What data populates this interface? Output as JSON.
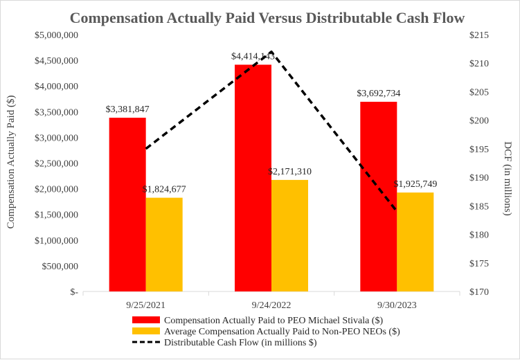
{
  "chart_data": {
    "type": "bar",
    "title": "Compensation Actually Paid Versus Distributable Cash Flow",
    "categories": [
      "9/25/2021",
      "9/24/2022",
      "9/30/2023"
    ],
    "series": [
      {
        "name": "Compensation Actually Paid to PEO Michael Stivala ($)",
        "type": "bar",
        "axis": "left",
        "color": "#ff0000",
        "values": [
          3381847,
          4414143,
          3692734
        ],
        "labels": [
          "$3,381,847",
          "$4,414,143",
          "$3,692,734"
        ]
      },
      {
        "name": "Average Compensation Actually Paid to Non-PEO NEOs ($)",
        "type": "bar",
        "axis": "left",
        "color": "#ffc000",
        "values": [
          1824677,
          2171310,
          1925749
        ],
        "labels": [
          "$1,824,677",
          "$2,171,310",
          "$1,925,749"
        ]
      },
      {
        "name": "Distributable Cash Flow (in millions $)",
        "type": "line",
        "axis": "right",
        "color": "#000000",
        "values": [
          195,
          212,
          184
        ]
      }
    ],
    "ylabel": "Compensation Actually Paid ($)",
    "ylim": [
      0,
      5000000
    ],
    "y_ticks": [
      0,
      500000,
      1000000,
      1500000,
      2000000,
      2500000,
      3000000,
      3500000,
      4000000,
      4500000,
      5000000
    ],
    "y_tick_labels": [
      "$-",
      "$500,000",
      "$1,000,000",
      "$1,500,000",
      "$2,000,000",
      "$2,500,000",
      "$3,000,000",
      "$3,500,000",
      "$4,000,000",
      "$4,500,000",
      "$5,000,000"
    ],
    "y2label": "DCF (in millions)",
    "y2lim": [
      170,
      215
    ],
    "y2_ticks": [
      170,
      175,
      180,
      185,
      190,
      195,
      200,
      205,
      210,
      215
    ],
    "y2_tick_labels": [
      "$170",
      "$175",
      "$180",
      "$185",
      "$190",
      "$195",
      "$200",
      "$205",
      "$210",
      "$215"
    ],
    "grid": false,
    "legend_position": "bottom"
  }
}
